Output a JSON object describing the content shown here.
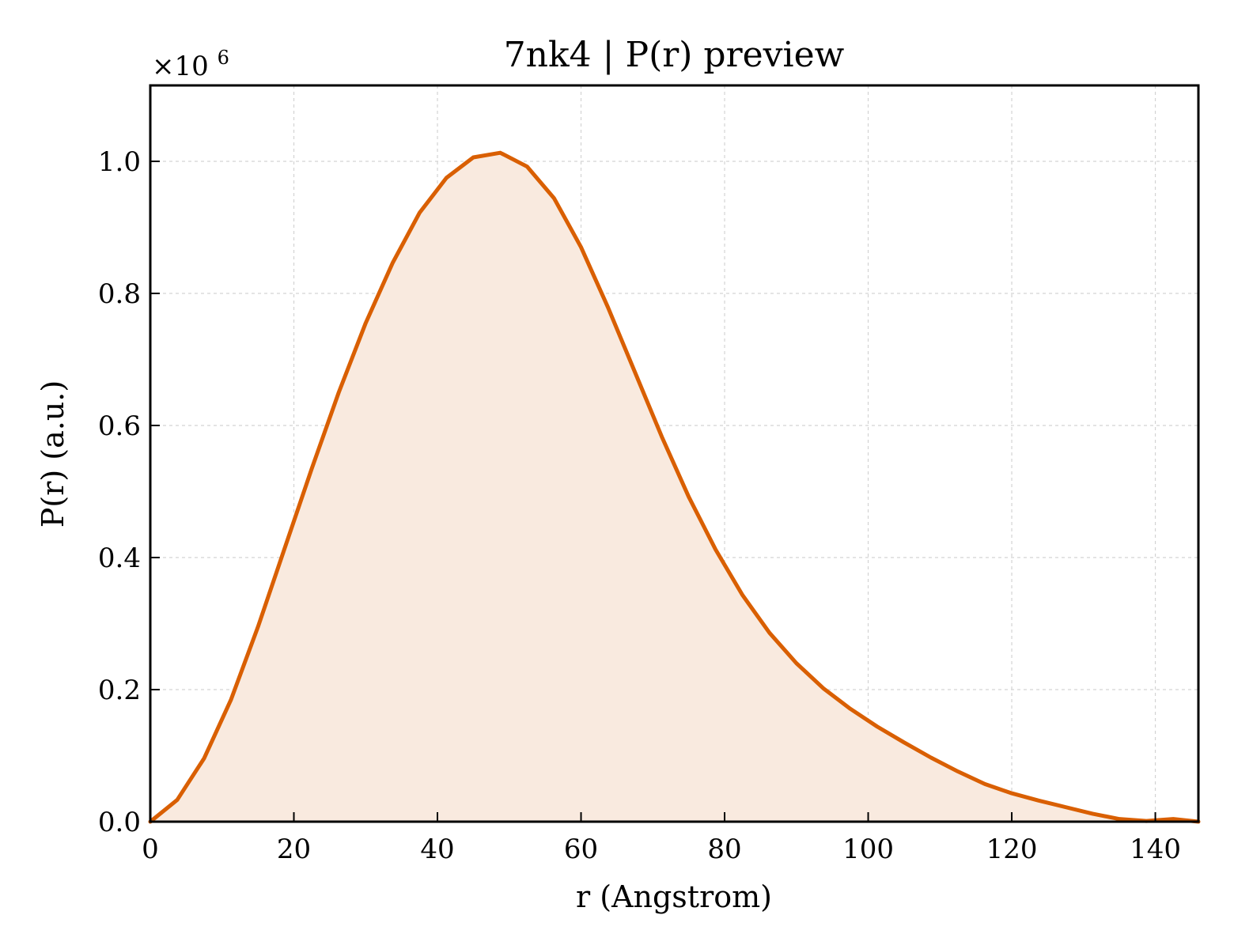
{
  "chart_data": {
    "type": "area",
    "title": "7nk4 | P(r) preview",
    "xlabel": "r (Angstrom)",
    "ylabel": "P(r) (a.u.)",
    "offset_text": {
      "base": "×10",
      "exponent": "6"
    },
    "xlim": [
      0,
      146
    ],
    "ylim": [
      0,
      1.115
    ],
    "y_scale_multiplier": 1000000,
    "x_ticks": [
      0,
      20,
      40,
      60,
      80,
      100,
      120,
      140
    ],
    "x_tick_labels": [
      "0",
      "20",
      "40",
      "60",
      "80",
      "100",
      "120",
      "140"
    ],
    "y_ticks": [
      0.0,
      0.2,
      0.4,
      0.6,
      0.8,
      1.0
    ],
    "y_tick_labels": [
      "0.0",
      "0.2",
      "0.4",
      "0.6",
      "0.8",
      "1.0"
    ],
    "grid": true,
    "legend": "none",
    "colors": {
      "line": "#d95f02",
      "fill": "#f9eadf",
      "grid": "#d3d3d3",
      "axes": "#000000"
    },
    "series": [
      {
        "x": [
          0,
          3.75,
          7.5,
          11.25,
          15,
          18.75,
          22.5,
          26.25,
          30,
          33.75,
          37.5,
          41.25,
          45,
          48.75,
          52.5,
          56.25,
          60,
          63.75,
          67.5,
          71.25,
          75,
          78.75,
          82.5,
          86.25,
          90,
          93.75,
          97.5,
          101.25,
          105,
          108.75,
          112.5,
          116.25,
          120,
          123.75,
          127.5,
          131.25,
          135,
          138.75,
          142.5,
          146
        ],
        "y": [
          0.0,
          0.033,
          0.096,
          0.185,
          0.295,
          0.415,
          0.535,
          0.65,
          0.755,
          0.846,
          0.922,
          0.975,
          1.006,
          1.013,
          0.992,
          0.944,
          0.87,
          0.779,
          0.681,
          0.583,
          0.492,
          0.412,
          0.343,
          0.286,
          0.24,
          0.202,
          0.171,
          0.144,
          0.12,
          0.097,
          0.076,
          0.057,
          0.043,
          0.032,
          0.022,
          0.012,
          0.004,
          0.001,
          0.004,
          0.0
        ]
      }
    ]
  }
}
